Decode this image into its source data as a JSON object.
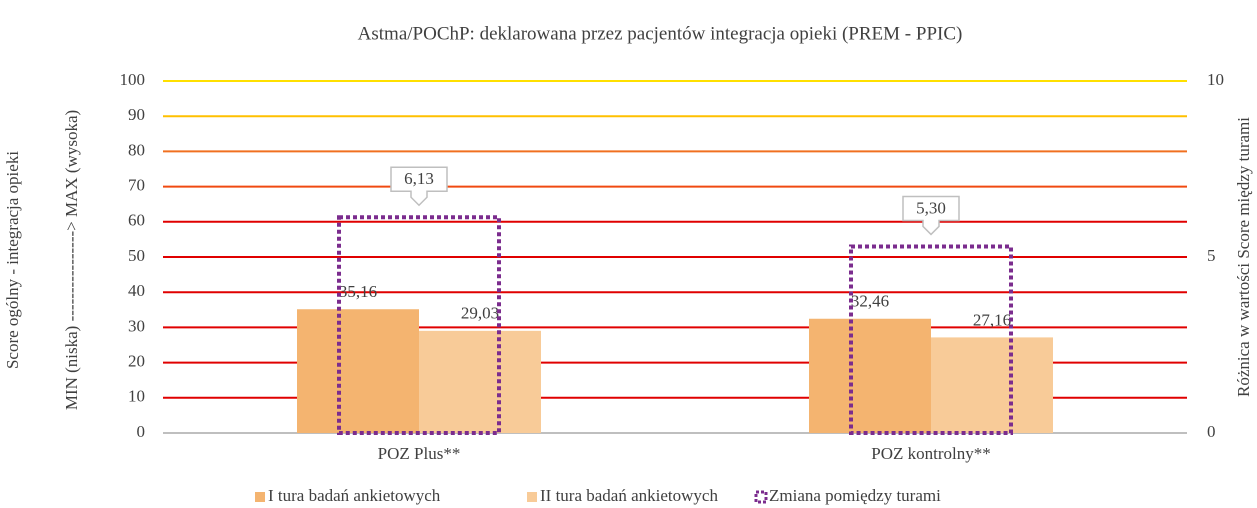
{
  "chart_data": {
    "type": "bar",
    "title": "Astma/POChP: deklarowana przez pacjentów integracja opieki (PREM - PPIC)",
    "y_label": [
      "Score ogólny - integracja opieki",
      "MIN (niska) ----------------> MAX (wysoka)"
    ],
    "y2_label": "Różnica w wartości Score między turami",
    "categories": [
      "POZ Plus**",
      "POZ kontrolny**"
    ],
    "series": [
      {
        "name": "I tura badań ankietowych",
        "color": "#f4b470",
        "values": [
          35.16,
          32.46
        ],
        "value_labels": [
          "35,16",
          "32,46"
        ]
      },
      {
        "name": "II tura badań ankietowych",
        "color": "#f8cb98",
        "values": [
          29.03,
          27.16
        ],
        "value_labels": [
          "29,03",
          "27,16"
        ]
      },
      {
        "name": "Zmiana pomiędzy turami",
        "color": "#7b2c8e",
        "axis": "y2",
        "values": [
          6.13,
          5.3
        ],
        "value_labels": [
          "6,13",
          "5,30"
        ]
      }
    ],
    "ylim": [
      0,
      100
    ],
    "yticks": [
      0,
      10,
      20,
      30,
      40,
      50,
      60,
      70,
      80,
      90,
      100
    ],
    "y2lim": [
      0,
      10
    ],
    "y2ticks": [
      0,
      5,
      10
    ],
    "grid": true,
    "grid_colors": [
      "#bfbfbf",
      "#e00000",
      "#e00000",
      "#e00000",
      "#e00000",
      "#e00000",
      "#e00000",
      "#f04a10",
      "#f07020",
      "#ffc000",
      "#ffe000"
    ],
    "legend": "bottom"
  }
}
